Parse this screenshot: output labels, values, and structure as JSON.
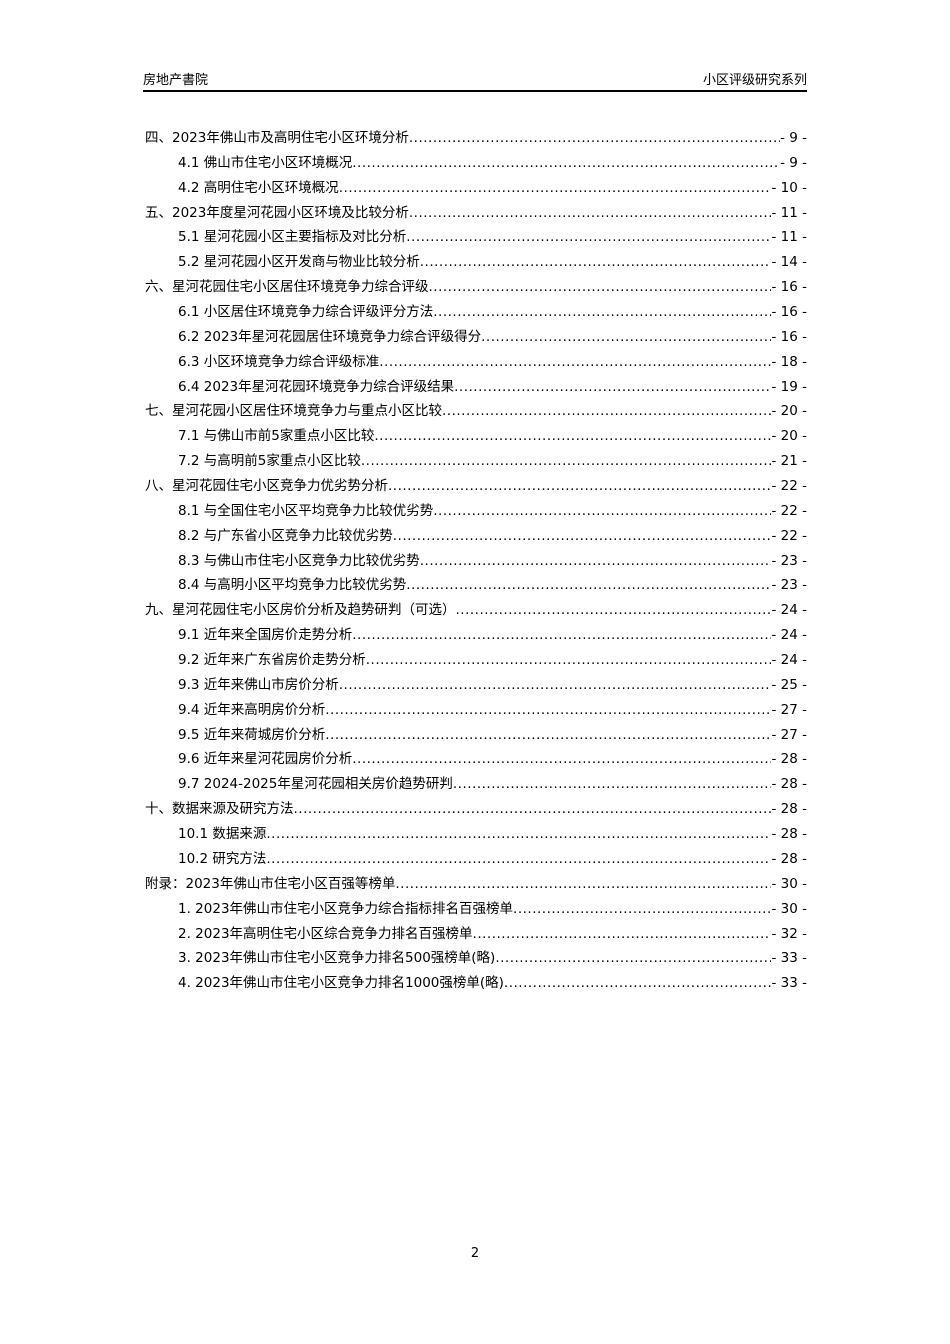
{
  "header": {
    "left": "房地产書院",
    "right": "小区评级研究系列"
  },
  "toc": [
    {
      "level": 1,
      "title": "四、2023年佛山市及高明住宅小区环境分析",
      "page": "- 9 -"
    },
    {
      "level": 2,
      "title": "4.1 佛山市住宅小区环境概况",
      "page": "- 9 -"
    },
    {
      "level": 2,
      "title": "4.2 高明住宅小区环境概况",
      "page": "- 10 -"
    },
    {
      "level": 1,
      "title": "五、2023年度星河花园小区环境及比较分析",
      "page": "- 11 -"
    },
    {
      "level": 2,
      "title": "5.1 星河花园小区主要指标及对比分析",
      "page": "- 11 -"
    },
    {
      "level": 2,
      "title": "5.2 星河花园小区开发商与物业比较分析",
      "page": "- 14 -"
    },
    {
      "level": 1,
      "title": "六、星河花园住宅小区居住环境竞争力综合评级",
      "page": "- 16 -"
    },
    {
      "level": 2,
      "title": "6.1 小区居住环境竞争力综合评级评分方法",
      "page": "- 16 -"
    },
    {
      "level": 2,
      "title": "6.2 2023年星河花园居住环境竞争力综合评级得分",
      "page": "- 16 -"
    },
    {
      "level": 2,
      "title": "6.3 小区环境竞争力综合评级标准",
      "page": "- 18 -"
    },
    {
      "level": 2,
      "title": "6.4 2023年星河花园环境竞争力综合评级结果",
      "page": "- 19 -"
    },
    {
      "level": 1,
      "title": "七、星河花园小区居住环境竞争力与重点小区比较",
      "page": "- 20 -"
    },
    {
      "level": 2,
      "title": "7.1 与佛山市前5家重点小区比较",
      "page": "- 20 -"
    },
    {
      "level": 2,
      "title": "7.2 与高明前5家重点小区比较",
      "page": "- 21 -"
    },
    {
      "level": 1,
      "title": "八、星河花园住宅小区竞争力优劣势分析",
      "page": "- 22 -"
    },
    {
      "level": 2,
      "title": "8.1 与全国住宅小区平均竞争力比较优劣势",
      "page": "- 22 -"
    },
    {
      "level": 2,
      "title": "8.2 与广东省小区竞争力比较优劣势",
      "page": "- 22 -"
    },
    {
      "level": 2,
      "title": "8.3 与佛山市住宅小区竞争力比较优劣势",
      "page": "- 23 -"
    },
    {
      "level": 2,
      "title": "8.4 与高明小区平均竞争力比较优劣势",
      "page": "- 23 -"
    },
    {
      "level": 1,
      "title": "九、星河花园住宅小区房价分析及趋势研判（可选）",
      "page": "- 24 -"
    },
    {
      "level": 2,
      "title": "9.1 近年来全国房价走势分析",
      "page": "- 24 -"
    },
    {
      "level": 2,
      "title": "9.2 近年来广东省房价走势分析",
      "page": "- 24 -"
    },
    {
      "level": 2,
      "title": "9.3 近年来佛山市房价分析",
      "page": "- 25 -"
    },
    {
      "level": 2,
      "title": "9.4 近年来高明房价分析",
      "page": "- 27 -"
    },
    {
      "level": 2,
      "title": "9.5 近年来荷城房价分析",
      "page": "- 27 -"
    },
    {
      "level": 2,
      "title": "9.6 近年来星河花园房价分析",
      "page": "- 28 -"
    },
    {
      "level": 2,
      "title": "9.7 2024-2025年星河花园相关房价趋势研判",
      "page": "- 28 -"
    },
    {
      "level": 1,
      "title": "十、数据来源及研究方法",
      "page": "- 28 -"
    },
    {
      "level": 2,
      "title": "10.1 数据来源",
      "page": "- 28 -"
    },
    {
      "level": 2,
      "title": "10.2 研究方法",
      "page": "- 28 -"
    },
    {
      "level": 1,
      "title": "附录：2023年佛山市住宅小区百强等榜单",
      "page": "- 30 -"
    },
    {
      "level": 2,
      "title": "1. 2023年佛山市住宅小区竞争力综合指标排名百强榜单",
      "page": "- 30 -"
    },
    {
      "level": 2,
      "title": "2. 2023年高明住宅小区综合竞争力排名百强榜单",
      "page": "- 32 -"
    },
    {
      "level": 2,
      "title": "3. 2023年佛山市住宅小区竞争力排名500强榜单(略)",
      "page": "- 33 -"
    },
    {
      "level": 2,
      "title": "4. 2023年佛山市住宅小区竞争力排名1000强榜单(略)",
      "page": "- 33 -"
    }
  ],
  "footer": {
    "page_number": "2"
  }
}
